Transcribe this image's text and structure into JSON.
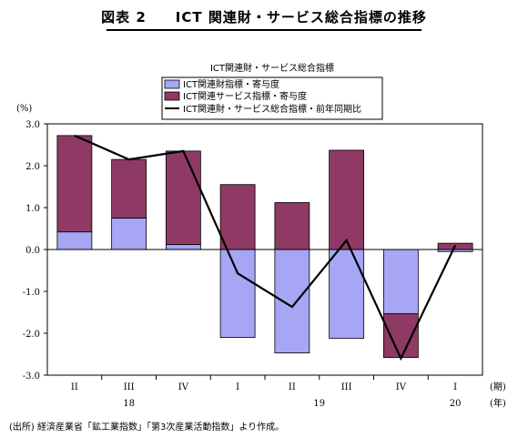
{
  "figure": {
    "title": "図表 2　　ICT 関連財・サービス総合指標の推移",
    "source": "(出所) 経済産業省「鉱工業指数」「第3次産業活動指数」より作成。"
  },
  "chart_data": {
    "type": "bar",
    "stacked": true,
    "title": "",
    "legend_title": "ICT関連財・サービス総合指標",
    "y_unit": "(%)",
    "ylim": [
      -3.0,
      3.0
    ],
    "y_ticks": [
      "3.0",
      "2.0",
      "1.0",
      "0.0",
      "-1.0",
      "-2.0",
      "-3.0"
    ],
    "categories": [
      "II",
      "III",
      "IV",
      "I",
      "II",
      "III",
      "IV",
      "I"
    ],
    "x_unit_quarter": "(期)",
    "x_unit_year": "(年)",
    "years": [
      {
        "label": "18",
        "start": 0,
        "end": 2
      },
      {
        "label": "19",
        "start": 3,
        "end": 6
      },
      {
        "label": "20",
        "start": 7,
        "end": 7
      }
    ],
    "series": [
      {
        "name": "ICT関連財指標・寄与度",
        "kind": "bar",
        "color": "#a6a6f5",
        "values": [
          0.42,
          0.75,
          0.12,
          -2.1,
          -2.47,
          -2.12,
          -1.53,
          -0.05
        ]
      },
      {
        "name": "ICT関連サービス指標・寄与度",
        "kind": "bar",
        "color": "#8e3a64",
        "values": [
          2.3,
          1.4,
          2.23,
          1.55,
          1.12,
          2.37,
          -1.05,
          0.15
        ]
      },
      {
        "name": "ICT関連財・サービス総合指標・前年同期比",
        "kind": "line",
        "color": "#000000",
        "values": [
          2.72,
          2.15,
          2.35,
          -0.57,
          -1.37,
          0.22,
          -2.6,
          0.1
        ]
      }
    ],
    "legend_position": "top-center",
    "grid": false
  }
}
